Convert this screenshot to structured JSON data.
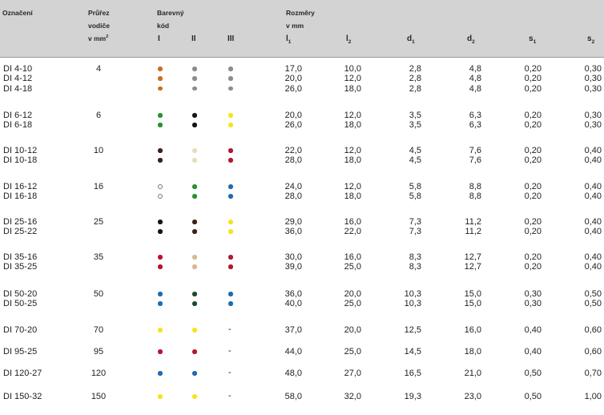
{
  "header": {
    "designation": "Označení",
    "cross_section_line1": "Průřez",
    "cross_section_line2": "vodiče",
    "cross_section_unit": "v mm",
    "color_code_line1": "Barevný",
    "color_code_line2": "kód",
    "roman": [
      "I",
      "II",
      "III"
    ],
    "dimensions_line1": "Rozměry",
    "dimensions_line2": "v mm",
    "dim_cols": [
      "l",
      "l",
      "d",
      "d",
      "s",
      "s"
    ],
    "dim_subs": [
      "1",
      "2",
      "1",
      "2",
      "1",
      "2"
    ]
  },
  "colors": {
    "orange": "#c8701f",
    "grey": "#8c8c8c",
    "green": "#27922f",
    "black": "#151515",
    "yellow": "#f3e41c",
    "darkbrown": "#3b2019",
    "beige": "#e6dcbe",
    "red": "#b5162e",
    "blue": "#1f6bb2",
    "tan": "#d9b891",
    "darkgreen": "#1f4a27"
  },
  "groups": [
    {
      "section": "4",
      "rows": [
        {
          "name": "DI 4-10",
          "c": [
            "orange",
            "grey",
            "grey"
          ],
          "l1": "17,0",
          "l2": "10,0",
          "d1": "2,8",
          "d2": "4,8",
          "s1": "0,20",
          "s2": "0,30"
        },
        {
          "name": "DI 4-12",
          "c": [
            "orange",
            "grey",
            "grey"
          ],
          "l1": "20,0",
          "l2": "12,0",
          "d1": "2,8",
          "d2": "4,8",
          "s1": "0,20",
          "s2": "0,30"
        },
        {
          "name": "DI 4-18",
          "c": [
            "orange",
            "grey",
            "grey"
          ],
          "l1": "26,0",
          "l2": "18,0",
          "d1": "2,8",
          "d2": "4,8",
          "s1": "0,20",
          "s2": "0,30"
        }
      ]
    },
    {
      "section": "6",
      "rows": [
        {
          "name": "DI 6-12",
          "c": [
            "green",
            "black",
            "yellow"
          ],
          "l1": "20,0",
          "l2": "12,0",
          "d1": "3,5",
          "d2": "6,3",
          "s1": "0,20",
          "s2": "0,30"
        },
        {
          "name": "DI 6-18",
          "c": [
            "green",
            "black",
            "yellow"
          ],
          "l1": "26,0",
          "l2": "18,0",
          "d1": "3,5",
          "d2": "6,3",
          "s1": "0,20",
          "s2": "0,30"
        }
      ]
    },
    {
      "section": "10",
      "rows": [
        {
          "name": "DI 10-12",
          "c": [
            "darkbrown",
            "beige",
            "red"
          ],
          "l1": "22,0",
          "l2": "12,0",
          "d1": "4,5",
          "d2": "7,6",
          "s1": "0,20",
          "s2": "0,40"
        },
        {
          "name": "DI 10-18",
          "c": [
            "darkbrown",
            "beige",
            "red"
          ],
          "l1": "28,0",
          "l2": "18,0",
          "d1": "4,5",
          "d2": "7,6",
          "s1": "0,20",
          "s2": "0,40"
        }
      ]
    },
    {
      "section": "16",
      "rows": [
        {
          "name": "DI 16-12",
          "c": [
            "white",
            "green",
            "blue"
          ],
          "l1": "24,0",
          "l2": "12,0",
          "d1": "5,8",
          "d2": "8,8",
          "s1": "0,20",
          "s2": "0,40"
        },
        {
          "name": "DI 16-18",
          "c": [
            "white",
            "green",
            "blue"
          ],
          "l1": "28,0",
          "l2": "18,0",
          "d1": "5,8",
          "d2": "8,8",
          "s1": "0,20",
          "s2": "0,40"
        }
      ]
    },
    {
      "section": "25",
      "rows": [
        {
          "name": "DI 25-16",
          "c": [
            "black",
            "darkbrown",
            "yellow"
          ],
          "l1": "29,0",
          "l2": "16,0",
          "d1": "7,3",
          "d2": "11,2",
          "s1": "0,20",
          "s2": "0,40"
        },
        {
          "name": "DI 25-22",
          "c": [
            "black",
            "darkbrown",
            "yellow"
          ],
          "l1": "36,0",
          "l2": "22,0",
          "d1": "7,3",
          "d2": "11,2",
          "s1": "0,20",
          "s2": "0,40"
        }
      ]
    },
    {
      "section": "35",
      "rows": [
        {
          "name": "DI 35-16",
          "c": [
            "red",
            "tan",
            "red"
          ],
          "l1": "30,0",
          "l2": "16,0",
          "d1": "8,3",
          "d2": "12,7",
          "s1": "0,20",
          "s2": "0,40"
        },
        {
          "name": "DI 35-25",
          "c": [
            "red",
            "tan",
            "red"
          ],
          "l1": "39,0",
          "l2": "25,0",
          "d1": "8,3",
          "d2": "12,7",
          "s1": "0,20",
          "s2": "0,40"
        }
      ]
    },
    {
      "section": "50",
      "rows": [
        {
          "name": "DI 50-20",
          "c": [
            "blue",
            "darkgreen",
            "blue"
          ],
          "l1": "36,0",
          "l2": "20,0",
          "d1": "10,3",
          "d2": "15,0",
          "s1": "0,30",
          "s2": "0,50"
        },
        {
          "name": "DI 50-25",
          "c": [
            "blue",
            "darkgreen",
            "blue"
          ],
          "l1": "40,0",
          "l2": "25,0",
          "d1": "10,3",
          "d2": "15,0",
          "s1": "0,30",
          "s2": "0,50"
        }
      ]
    },
    {
      "section": "70",
      "rows": [
        {
          "name": "DI 70-20",
          "c": [
            "yellow",
            "yellow",
            "-"
          ],
          "l1": "37,0",
          "l2": "20,0",
          "d1": "12,5",
          "d2": "16,0",
          "s1": "0,40",
          "s2": "0,60"
        }
      ]
    },
    {
      "section": "95",
      "rows": [
        {
          "name": "DI 95-25",
          "c": [
            "red",
            "red",
            "-"
          ],
          "l1": "44,0",
          "l2": "25,0",
          "d1": "14,5",
          "d2": "18,0",
          "s1": "0,40",
          "s2": "0,60"
        }
      ]
    },
    {
      "section": "120",
      "rows": [
        {
          "name": "DI 120-27",
          "c": [
            "blue",
            "blue",
            "-"
          ],
          "l1": "48,0",
          "l2": "27,0",
          "d1": "16,5",
          "d2": "21,0",
          "s1": "0,50",
          "s2": "0,70"
        }
      ]
    },
    {
      "section": "150",
      "rows": [
        {
          "name": "DI 150-32",
          "c": [
            "yellow",
            "yellow",
            "-"
          ],
          "l1": "58,0",
          "l2": "32,0",
          "d1": "19,3",
          "d2": "23,0",
          "s1": "0,50",
          "s2": "1,00"
        }
      ]
    }
  ]
}
